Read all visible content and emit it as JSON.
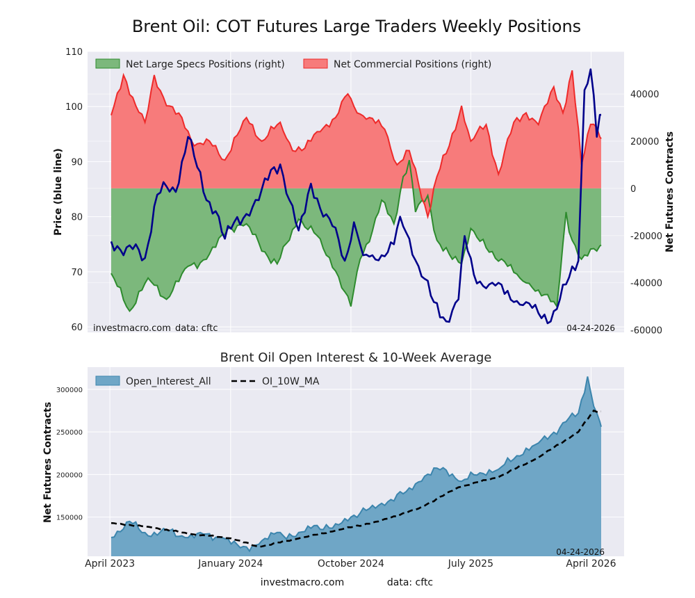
{
  "title": "Brent Oil: COT Futures Large Traders Weekly Positions",
  "footer": {
    "site": "investmacro.com",
    "source": "data: cftc"
  },
  "colors": {
    "background": "#eaeaf2",
    "grid": "#ffffff",
    "price": "#00008b",
    "specs_fill": "#7cb87c",
    "specs_line": "#2e8b2e",
    "comm_fill": "#f77b7b",
    "comm_line": "#ee2a2a",
    "oi_fill": "#6fa6c6",
    "oi_line": "#3c85ad",
    "ma_line": "#000000"
  },
  "chart_data": [
    {
      "type": "line",
      "title": "Brent Oil: COT Futures Large Traders Weekly Positions",
      "ylabel": "Price (blue line)",
      "y2label": "Net Futures Contracts",
      "ylim": [
        59,
        110
      ],
      "y2lim": [
        -61000,
        58000
      ],
      "yticks": [
        60,
        70,
        80,
        90,
        100,
        110
      ],
      "y2ticks": [
        -60000,
        -40000,
        -20000,
        0,
        20000,
        40000
      ],
      "grid": true,
      "legend_position": "top-left",
      "watermark": "investmacro.com",
      "source": "data: cftc",
      "date_label": "04-24-2026",
      "x_start": "2023-04-04",
      "x_end": "2026-04-24",
      "series": [
        {
          "name": "Net Large Specs Positions (right)",
          "axis": "right",
          "kind": "area",
          "anchors": [
            [
              "2023-04-04",
              -36000
            ],
            [
              "2023-05-16",
              -52000
            ],
            [
              "2023-06-27",
              -38000
            ],
            [
              "2023-08-08",
              -47000
            ],
            [
              "2023-09-26",
              -33000
            ],
            [
              "2023-11-07",
              -30000
            ],
            [
              "2023-12-26",
              -17000
            ],
            [
              "2024-02-06",
              -15000
            ],
            [
              "2024-03-26",
              -29000
            ],
            [
              "2024-04-16",
              -32000
            ],
            [
              "2024-06-04",
              -13000
            ],
            [
              "2024-07-16",
              -20000
            ],
            [
              "2024-08-27",
              -35000
            ],
            [
              "2024-10-01",
              -50000
            ],
            [
              "2024-10-22",
              -30000
            ],
            [
              "2024-11-19",
              -18000
            ],
            [
              "2024-12-10",
              -5000
            ],
            [
              "2025-01-07",
              -15000
            ],
            [
              "2025-01-28",
              5000
            ],
            [
              "2025-02-11",
              12000
            ],
            [
              "2025-02-25",
              -10000
            ],
            [
              "2025-03-25",
              -3000
            ],
            [
              "2025-04-15",
              -22000
            ],
            [
              "2025-05-20",
              -30000
            ],
            [
              "2025-06-10",
              -32000
            ],
            [
              "2025-07-01",
              -17000
            ],
            [
              "2025-08-12",
              -27000
            ],
            [
              "2025-09-16",
              -31000
            ],
            [
              "2025-10-21",
              -38000
            ],
            [
              "2025-11-18",
              -42000
            ],
            [
              "2025-12-16",
              -45000
            ],
            [
              "2026-01-13",
              -50000
            ],
            [
              "2026-02-03",
              -10000
            ],
            [
              "2026-02-17",
              -22000
            ],
            [
              "2026-03-10",
              -30000
            ],
            [
              "2026-04-24",
              -24000
            ]
          ]
        },
        {
          "name": "Net Commercial Positions (right)",
          "axis": "right",
          "kind": "area",
          "anchors": [
            [
              "2023-04-04",
              31000
            ],
            [
              "2023-05-02",
              48000
            ],
            [
              "2023-05-30",
              35000
            ],
            [
              "2023-06-20",
              28000
            ],
            [
              "2023-07-11",
              48000
            ],
            [
              "2023-08-08",
              35000
            ],
            [
              "2023-09-12",
              30000
            ],
            [
              "2023-10-10",
              18000
            ],
            [
              "2023-11-14",
              20000
            ],
            [
              "2023-12-19",
              12000
            ],
            [
              "2024-02-06",
              30000
            ],
            [
              "2024-03-12",
              20000
            ],
            [
              "2024-04-23",
              28000
            ],
            [
              "2024-05-21",
              16000
            ],
            [
              "2024-06-18",
              17000
            ],
            [
              "2024-07-16",
              24000
            ],
            [
              "2024-08-27",
              30000
            ],
            [
              "2024-09-24",
              40000
            ],
            [
              "2024-10-15",
              32000
            ],
            [
              "2024-11-12",
              30000
            ],
            [
              "2024-12-17",
              25000
            ],
            [
              "2025-01-14",
              10000
            ],
            [
              "2025-02-11",
              16000
            ],
            [
              "2025-03-04",
              2000
            ],
            [
              "2025-03-25",
              -12000
            ],
            [
              "2025-04-15",
              5000
            ],
            [
              "2025-05-13",
              18000
            ],
            [
              "2025-06-10",
              35000
            ],
            [
              "2025-07-01",
              20000
            ],
            [
              "2025-08-05",
              27000
            ],
            [
              "2025-09-02",
              6000
            ],
            [
              "2025-10-07",
              28000
            ],
            [
              "2025-11-04",
              32000
            ],
            [
              "2025-12-02",
              27000
            ],
            [
              "2026-01-06",
              43000
            ],
            [
              "2026-01-27",
              32000
            ],
            [
              "2026-02-17",
              50000
            ],
            [
              "2026-03-10",
              10000
            ],
            [
              "2026-04-03",
              30000
            ],
            [
              "2026-04-24",
              21000
            ]
          ]
        },
        {
          "name": "Price (blue line)",
          "axis": "left",
          "kind": "line",
          "anchors": [
            [
              "2023-04-04",
              75.5
            ],
            [
              "2023-05-02",
              73
            ],
            [
              "2023-05-30",
              75
            ],
            [
              "2023-06-20",
              72.5
            ],
            [
              "2023-07-18",
              84
            ],
            [
              "2023-08-08",
              85.5
            ],
            [
              "2023-08-29",
              84.5
            ],
            [
              "2023-09-26",
              94.5
            ],
            [
              "2023-10-17",
              89
            ],
            [
              "2023-11-07",
              83
            ],
            [
              "2023-11-28",
              81
            ],
            [
              "2023-12-19",
              76
            ],
            [
              "2024-01-09",
              79
            ],
            [
              "2024-02-06",
              80.5
            ],
            [
              "2024-03-05",
              83
            ],
            [
              "2024-04-02",
              88.5
            ],
            [
              "2024-04-23",
              89.5
            ],
            [
              "2024-05-14",
              83
            ],
            [
              "2024-06-04",
              77.5
            ],
            [
              "2024-07-02",
              86
            ],
            [
              "2024-07-30",
              80
            ],
            [
              "2024-08-27",
              78
            ],
            [
              "2024-09-17",
              72
            ],
            [
              "2024-10-08",
              79
            ],
            [
              "2024-10-29",
              73
            ],
            [
              "2024-11-19",
              73
            ],
            [
              "2024-12-10",
              73
            ],
            [
              "2025-01-07",
              75
            ],
            [
              "2025-01-21",
              80
            ],
            [
              "2025-02-11",
              76
            ],
            [
              "2025-03-04",
              71
            ],
            [
              "2025-04-08",
              64.5
            ],
            [
              "2025-05-06",
              61
            ],
            [
              "2025-06-03",
              65
            ],
            [
              "2025-06-17",
              76.5
            ],
            [
              "2025-07-08",
              69.5
            ],
            [
              "2025-08-05",
              67
            ],
            [
              "2025-09-02",
              68
            ],
            [
              "2025-10-07",
              64.5
            ],
            [
              "2025-11-04",
              64.5
            ],
            [
              "2025-12-02",
              62.5
            ],
            [
              "2025-12-30",
              61
            ],
            [
              "2026-01-20",
              65
            ],
            [
              "2026-02-10",
              69
            ],
            [
              "2026-03-03",
              72
            ],
            [
              "2026-03-17",
              103
            ],
            [
              "2026-04-03",
              107
            ],
            [
              "2026-04-14",
              94.5
            ],
            [
              "2026-04-24",
              98.5
            ]
          ]
        }
      ]
    },
    {
      "type": "area",
      "title": "Brent Oil Open Interest & 10-Week Average",
      "ylabel": "Net Futures Contracts",
      "ylim": [
        104000,
        326000
      ],
      "yticks": [
        150000,
        200000,
        250000,
        300000
      ],
      "xticks": [
        "April 2023",
        "January 2024",
        "October 2024",
        "July 2025",
        "April 2026"
      ],
      "xtick_dates": [
        "2023-04-01",
        "2024-01-01",
        "2024-10-01",
        "2025-07-01",
        "2026-04-01"
      ],
      "grid": true,
      "legend_position": "top-left",
      "date_label": "04-24-2026",
      "series": [
        {
          "name": "Open_Interest_All",
          "kind": "area",
          "anchors": [
            [
              "2023-04-04",
              126000
            ],
            [
              "2023-05-16",
              145000
            ],
            [
              "2023-06-27",
              128000
            ],
            [
              "2023-08-08",
              135000
            ],
            [
              "2023-09-19",
              126000
            ],
            [
              "2023-10-31",
              130000
            ],
            [
              "2023-12-12",
              126000
            ],
            [
              "2024-01-23",
              114000
            ],
            [
              "2024-03-05",
              118000
            ],
            [
              "2024-04-16",
              132000
            ],
            [
              "2024-05-28",
              127000
            ],
            [
              "2024-07-09",
              140000
            ],
            [
              "2024-08-20",
              137000
            ],
            [
              "2024-10-01",
              150000
            ],
            [
              "2024-11-12",
              160000
            ],
            [
              "2024-12-24",
              168000
            ],
            [
              "2025-02-04",
              180000
            ],
            [
              "2025-03-18",
              198000
            ],
            [
              "2025-04-29",
              208000
            ],
            [
              "2025-06-10",
              192000
            ],
            [
              "2025-07-22",
              202000
            ],
            [
              "2025-09-02",
              206000
            ],
            [
              "2025-10-14",
              222000
            ],
            [
              "2025-11-25",
              235000
            ],
            [
              "2025-12-30",
              246000
            ],
            [
              "2026-02-03",
              262000
            ],
            [
              "2026-03-03",
              272000
            ],
            [
              "2026-03-24",
              315000
            ],
            [
              "2026-04-07",
              280000
            ],
            [
              "2026-04-24",
              256000
            ]
          ]
        },
        {
          "name": "OI_10W_MA",
          "kind": "line",
          "anchors": [
            [
              "2023-04-04",
              143000
            ],
            [
              "2023-07-04",
              138000
            ],
            [
              "2023-10-03",
              130000
            ],
            [
              "2024-01-02",
              125000
            ],
            [
              "2024-03-05",
              115000
            ],
            [
              "2024-06-04",
              125000
            ],
            [
              "2024-09-03",
              135000
            ],
            [
              "2024-12-03",
              145000
            ],
            [
              "2025-03-04",
              160000
            ],
            [
              "2025-06-03",
              185000
            ],
            [
              "2025-09-02",
              197000
            ],
            [
              "2025-12-02",
              220000
            ],
            [
              "2026-03-03",
              250000
            ],
            [
              "2026-04-07",
              275000
            ],
            [
              "2026-04-24",
              274000
            ]
          ]
        }
      ]
    }
  ]
}
